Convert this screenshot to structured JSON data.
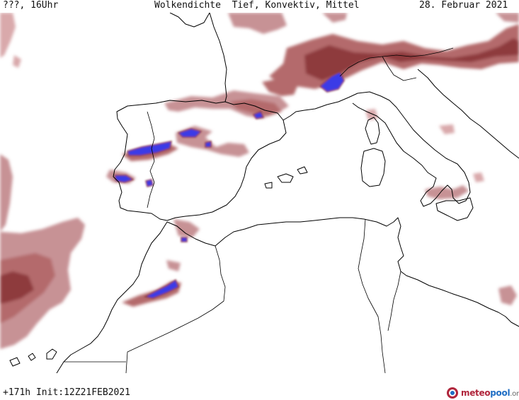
{
  "header": {
    "left": "???, 16Uhr",
    "title": "Wolkendichte  Tief, Konvektiv, Mittel",
    "date": "28. Februar 2021"
  },
  "footer": {
    "run_info": "+171h Init:12Z21FEB2021"
  },
  "brand": {
    "part1": "meteo",
    "part2": "pool",
    "part3": ".org",
    "logo_icon": "meteopool-droplet-icon"
  },
  "map": {
    "region": "Western Mediterranean / Iberia / North Africa",
    "legend_colors": {
      "cloud_low_density": "#d9a9ab",
      "cloud_mid_density": "#b46a6c",
      "cloud_high_density": "#8e3a3e",
      "convective": "#3a3ae6",
      "coastline": "#000000",
      "background": "#ffffff"
    }
  }
}
